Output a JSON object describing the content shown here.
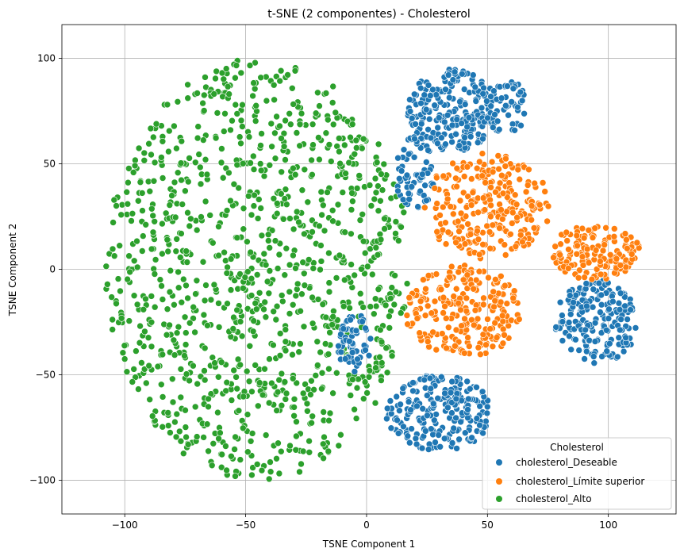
{
  "chart_data": {
    "type": "scatter",
    "title": "t-SNE (2 componentes) - Cholesterol",
    "xlabel": "TSNE Component 1",
    "ylabel": "TSNE Component 2",
    "xlim": [
      -126,
      128
    ],
    "ylim": [
      -116,
      116
    ],
    "xticks": [
      -100,
      -50,
      0,
      50,
      100
    ],
    "yticks": [
      -100,
      -50,
      0,
      50,
      100
    ],
    "grid": true,
    "legend": {
      "title": "Cholesterol",
      "placement": "lower-right",
      "entries": [
        "cholesterol_Deseable",
        "cholesterol_Límite superior",
        "cholesterol_Alto"
      ]
    },
    "series": [
      {
        "name": "cholesterol_Deseable",
        "color": "#1f77b4",
        "clusters": [
          {
            "cx": 35,
            "cy": 75,
            "rx": 18,
            "ry": 20,
            "n": 220
          },
          {
            "cx": 20,
            "cy": 45,
            "rx": 8,
            "ry": 18,
            "n": 70
          },
          {
            "cx": 58,
            "cy": 78,
            "rx": 9,
            "ry": 14,
            "n": 60
          },
          {
            "cx": -5,
            "cy": -35,
            "rx": 7,
            "ry": 14,
            "n": 60
          },
          {
            "cx": 30,
            "cy": -68,
            "rx": 22,
            "ry": 18,
            "n": 220
          },
          {
            "cx": 95,
            "cy": -25,
            "rx": 17,
            "ry": 20,
            "n": 190
          }
        ]
      },
      {
        "name": "cholesterol_Límite superior",
        "color": "#ff7f0e",
        "clusters": [
          {
            "cx": 50,
            "cy": 30,
            "rx": 26,
            "ry": 25,
            "n": 260
          },
          {
            "cx": 40,
            "cy": -20,
            "rx": 24,
            "ry": 22,
            "n": 240
          },
          {
            "cx": 95,
            "cy": 8,
            "rx": 18,
            "ry": 14,
            "n": 140
          }
        ]
      },
      {
        "name": "cholesterol_Alto",
        "color": "#2ca02c",
        "clusters": [
          {
            "cx": -45,
            "cy": 0,
            "rx": 63,
            "ry": 100,
            "n": 1100
          }
        ]
      }
    ]
  }
}
